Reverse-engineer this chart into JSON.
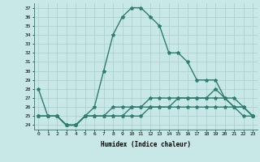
{
  "xlabel": "Humidex (Indice chaleur)",
  "hours": [
    0,
    1,
    2,
    3,
    4,
    5,
    6,
    7,
    8,
    9,
    10,
    11,
    12,
    13,
    14,
    15,
    16,
    17,
    18,
    19,
    20,
    21,
    22,
    23
  ],
  "line1": [
    28,
    25,
    25,
    24,
    24,
    25,
    26,
    30,
    34,
    36,
    37,
    37,
    36,
    35,
    32,
    32,
    31,
    29,
    29,
    29,
    27,
    26,
    25,
    25
  ],
  "line2": [
    25,
    25,
    25,
    24,
    24,
    25,
    25,
    25,
    26,
    26,
    26,
    26,
    27,
    27,
    27,
    27,
    27,
    27,
    27,
    28,
    27,
    27,
    26,
    25
  ],
  "line3": [
    25,
    25,
    25,
    24,
    24,
    25,
    25,
    25,
    25,
    25,
    26,
    26,
    26,
    26,
    26,
    27,
    27,
    27,
    27,
    27,
    27,
    26,
    26,
    25
  ],
  "line4": [
    25,
    25,
    25,
    24,
    24,
    25,
    25,
    25,
    25,
    25,
    25,
    25,
    26,
    26,
    26,
    26,
    26,
    26,
    26,
    26,
    26,
    26,
    26,
    25
  ],
  "line_color": "#2e7d6e",
  "bg_color": "#c8e8e8",
  "grid_color": "#aacccc",
  "ylim": [
    23.5,
    37.5
  ],
  "yticks": [
    24,
    25,
    26,
    27,
    28,
    29,
    30,
    31,
    32,
    33,
    34,
    35,
    36,
    37
  ],
  "marker": "*",
  "markersize": 3,
  "linewidth": 1.0
}
